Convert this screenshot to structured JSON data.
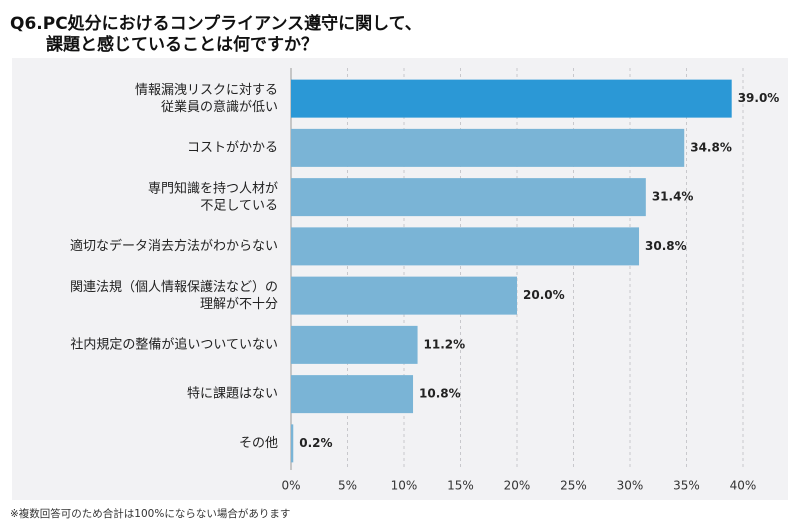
{
  "chart_data": {
    "type": "barh",
    "title": "Q6.PC処分におけるコンプライアンス遵守に関して、\n課題と感じていることは何ですか？",
    "categories": [
      "情報漏洩リスクに対する\n従業員の意識が低い",
      "コストがかかる",
      "専門知識を持つ人材が\n不足している",
      "適切なデータ消去方法がわからない",
      "関連法規（個人情報保護法など）の\n理解が不十分",
      "社内規定の整備が追いついていない",
      "特に課題はない",
      "その他"
    ],
    "values": [
      39.0,
      34.8,
      31.4,
      30.8,
      20.0,
      11.2,
      10.8,
      0.2
    ],
    "value_labels": [
      "39.0%",
      "34.8%",
      "31.4%",
      "30.8%",
      "20.0%",
      "11.2%",
      "10.8%",
      "0.2%"
    ],
    "colors": [
      "#2b98d6",
      "#7ab4d6",
      "#7ab4d6",
      "#7ab4d6",
      "#7ab4d6",
      "#7ab4d6",
      "#7ab4d6",
      "#7ab4d6"
    ],
    "xlim": [
      0,
      40
    ],
    "xticks": [
      {
        "value": 0,
        "label": "0%"
      },
      {
        "value": 5,
        "label": "5%"
      },
      {
        "value": 10,
        "label": "10%"
      },
      {
        "value": 15,
        "label": "15%"
      },
      {
        "value": 20,
        "label": "20%"
      },
      {
        "value": 25,
        "label": "25%"
      },
      {
        "value": 30,
        "label": "30%"
      },
      {
        "value": 35,
        "label": "35%"
      },
      {
        "value": 40,
        "label": "40%"
      }
    ],
    "grid": true,
    "footnote": "※複数回答可のため合計は100%にならない場合があります"
  }
}
